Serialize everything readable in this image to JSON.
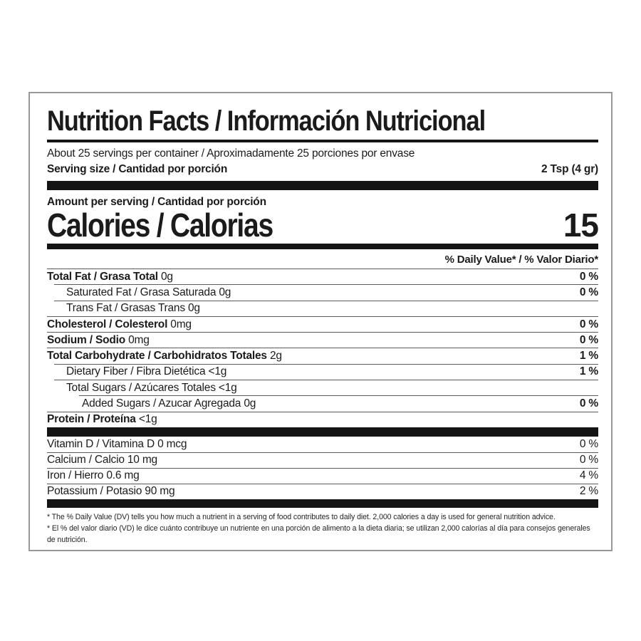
{
  "colors": {
    "ink": "#1b1b1b",
    "border": "#989898",
    "background": "#ffffff"
  },
  "label": {
    "title": "Nutrition Facts / Información Nutricional",
    "servings_per_container": "About 25 servings per container / Aproximadamente 25 porciones por envase",
    "serving_size_label": "Serving size / Cantidad por porción",
    "serving_size_value": "2 Tsp (4 gr)",
    "amount_per_serving": "Amount per serving / Cantidad por porción",
    "calories_label": "Calories / Calorias",
    "calories_value": "15",
    "daily_value_header": "% Daily Value* / % Valor Diario*",
    "nutrients": [
      {
        "name": "Total Fat / Grasa Total",
        "amount": "0g",
        "dv": "0 %"
      },
      {
        "name": "Saturated Fat / Grasa Saturada",
        "amount": "0g",
        "dv": "0 %"
      },
      {
        "name": "Trans Fat / Grasas Trans",
        "amount": "0g",
        "dv": ""
      },
      {
        "name": "Cholesterol / Colesterol",
        "amount": "0mg",
        "dv": "0 %"
      },
      {
        "name": "Sodium / Sodio",
        "amount": "0mg",
        "dv": "0 %"
      },
      {
        "name": "Total Carbohydrate / Carbohidratos Totales",
        "amount": "2g",
        "dv": "1 %"
      },
      {
        "name": "Dietary Fiber / Fibra Dietética",
        "amount": "<1g",
        "dv": "1 %"
      },
      {
        "name": "Total Sugars / Azúcares Totales",
        "amount": "<1g",
        "dv": ""
      },
      {
        "name": "Added Sugars / Azucar Agregada",
        "amount": "0g",
        "dv": "0 %"
      },
      {
        "name": "Protein / Proteína",
        "amount": "<1g",
        "dv": ""
      }
    ],
    "vitamins": [
      {
        "name": "Vitamin D / Vitamina D",
        "amount": "0 mcg",
        "dv": "0 %"
      },
      {
        "name": "Calcium / Calcio",
        "amount": "10 mg",
        "dv": "0 %"
      },
      {
        "name": "Iron / Hierro",
        "amount": "0.6 mg",
        "dv": "4 %"
      },
      {
        "name": "Potassium / Potasio",
        "amount": "90 mg",
        "dv": "2 %"
      }
    ],
    "footnote_en": "* The % Daily Value (DV) tells you how much a nutrient in a serving of food contributes to daily diet. 2,000 calories a day is used for general nutrition advice.",
    "footnote_es": "* El % del valor diario (VD) le dice cuánto contribuye un nutriente en una porción de alimento a la dieta diaria; se utilizan 2,000 calorías al día para consejos generales de nutrición."
  }
}
